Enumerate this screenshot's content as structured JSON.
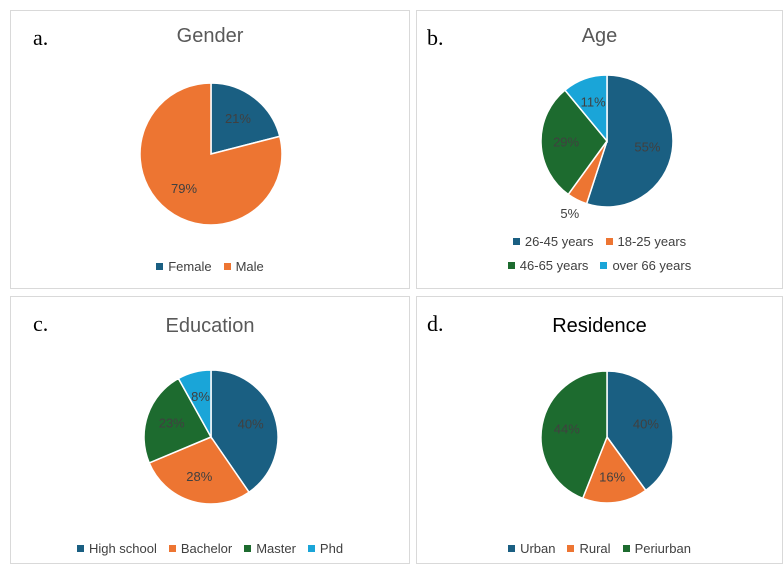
{
  "colors": {
    "blue": "#1a5f82",
    "orange": "#ed7532",
    "green": "#1d6b2f",
    "cyan": "#1aa5d8"
  },
  "chart_data": [
    {
      "type": "pie",
      "letter": "a.",
      "title": "Gender",
      "categories": [
        "Female",
        "Male"
      ],
      "values": [
        21,
        79
      ],
      "labels": [
        "21%",
        "79%"
      ],
      "colors": [
        "#1a5f82",
        "#ed7532"
      ],
      "legend_position": "bottom",
      "legend_rows": [
        [
          0,
          1
        ]
      ]
    },
    {
      "type": "pie",
      "letter": "b.",
      "title": "Age",
      "categories": [
        "26-45 years",
        "18-25 years",
        "46-65 years",
        "over 66 years"
      ],
      "values": [
        55,
        5,
        29,
        11
      ],
      "labels": [
        "55%",
        "5%",
        "29%",
        "11%"
      ],
      "colors": [
        "#1a5f82",
        "#ed7532",
        "#1d6b2f",
        "#1aa5d8"
      ],
      "legend_position": "bottom",
      "legend_rows": [
        [
          0,
          1
        ],
        [
          2,
          3
        ]
      ]
    },
    {
      "type": "pie",
      "letter": "c.",
      "title": "Education",
      "categories": [
        "High school",
        "Bachelor",
        "Master",
        "Phd"
      ],
      "values": [
        40,
        28,
        23,
        8
      ],
      "labels": [
        "40%",
        "28%",
        "23%",
        "8%"
      ],
      "colors": [
        "#1a5f82",
        "#ed7532",
        "#1d6b2f",
        "#1aa5d8"
      ],
      "legend_position": "bottom",
      "legend_rows": [
        [
          0,
          1,
          2,
          3
        ]
      ]
    },
    {
      "type": "pie",
      "letter": "d.",
      "title": "Residence",
      "categories": [
        "Urban",
        "Rural",
        "Periurban"
      ],
      "values": [
        40,
        16,
        44
      ],
      "labels": [
        "40%",
        "16%",
        "44%"
      ],
      "colors": [
        "#1a5f82",
        "#ed7532",
        "#1d6b2f"
      ],
      "legend_position": "bottom",
      "legend_rows": [
        [
          0,
          1,
          2
        ]
      ]
    }
  ]
}
